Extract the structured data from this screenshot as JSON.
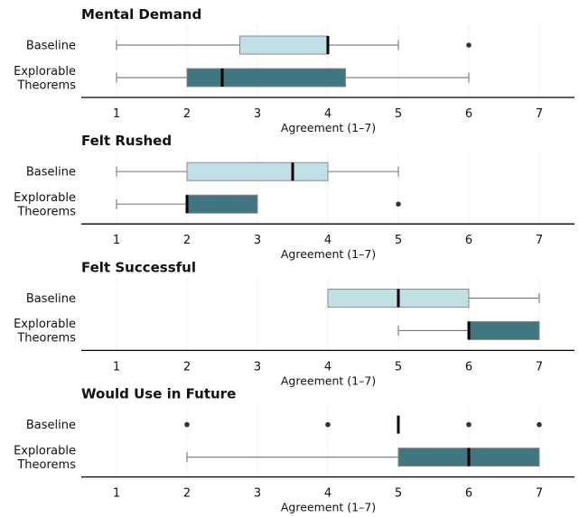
{
  "chart_data": [
    {
      "type": "boxplot",
      "title": "Mental Demand",
      "xlabel": "Agreement (1–7)",
      "xlim": [
        0.5,
        7.5
      ],
      "xticks": [
        1,
        2,
        3,
        4,
        5,
        6,
        7
      ],
      "grid": "vertical-light",
      "categories": [
        [
          "Baseline"
        ],
        [
          "Explorable",
          "Theorems"
        ]
      ],
      "series": [
        {
          "group": "Baseline",
          "whisker_low": 1,
          "q1": 2.75,
          "median": 4,
          "q3": 4,
          "whisker_high": 5,
          "outliers": [
            6
          ],
          "color": "#bfe1e6"
        },
        {
          "group": "Explorable Theorems",
          "whisker_low": 1,
          "q1": 2,
          "median": 2.5,
          "q3": 4.25,
          "whisker_high": 6,
          "outliers": [],
          "color": "#3f7680"
        }
      ]
    },
    {
      "type": "boxplot",
      "title": "Felt Rushed",
      "xlabel": "Agreement (1–7)",
      "xlim": [
        0.5,
        7.5
      ],
      "xticks": [
        1,
        2,
        3,
        4,
        5,
        6,
        7
      ],
      "grid": "vertical-light",
      "categories": [
        [
          "Baseline"
        ],
        [
          "Explorable",
          "Theorems"
        ]
      ],
      "series": [
        {
          "group": "Baseline",
          "whisker_low": 1,
          "q1": 2,
          "median": 3.5,
          "q3": 4,
          "whisker_high": 5,
          "outliers": [],
          "color": "#bfe1e6"
        },
        {
          "group": "Explorable Theorems",
          "whisker_low": 1,
          "q1": 2,
          "median": 2,
          "q3": 3,
          "whisker_high": 3,
          "outliers": [
            5
          ],
          "color": "#3f7680"
        }
      ]
    },
    {
      "type": "boxplot",
      "title": "Felt Successful",
      "xlabel": "Agreement (1–7)",
      "xlim": [
        0.5,
        7.5
      ],
      "xticks": [
        1,
        2,
        3,
        4,
        5,
        6,
        7
      ],
      "grid": "vertical-light",
      "categories": [
        [
          "Baseline"
        ],
        [
          "Explorable",
          "Theorems"
        ]
      ],
      "series": [
        {
          "group": "Baseline",
          "whisker_low": 4,
          "q1": 4,
          "median": 5,
          "q3": 6,
          "whisker_high": 7,
          "outliers": [],
          "color": "#bfe1e6"
        },
        {
          "group": "Explorable Theorems",
          "whisker_low": 5,
          "q1": 6,
          "median": 6,
          "q3": 7,
          "whisker_high": 7,
          "outliers": [],
          "color": "#3f7680"
        }
      ]
    },
    {
      "type": "boxplot",
      "title": "Would Use in Future",
      "xlabel": "Agreement (1–7)",
      "xlim": [
        0.5,
        7.5
      ],
      "xticks": [
        1,
        2,
        3,
        4,
        5,
        6,
        7
      ],
      "grid": "vertical-light",
      "categories": [
        [
          "Baseline"
        ],
        [
          "Explorable",
          "Theorems"
        ]
      ],
      "series": [
        {
          "group": "Baseline",
          "whisker_low": 5,
          "q1": 5,
          "median": 5,
          "q3": 5,
          "whisker_high": 5,
          "outliers": [
            2,
            4,
            6,
            7
          ],
          "color": "#bfe1e6"
        },
        {
          "group": "Explorable Theorems",
          "whisker_low": 2,
          "q1": 5,
          "median": 6,
          "q3": 7,
          "whisker_high": 7,
          "outliers": [],
          "color": "#3f7680"
        }
      ]
    }
  ]
}
